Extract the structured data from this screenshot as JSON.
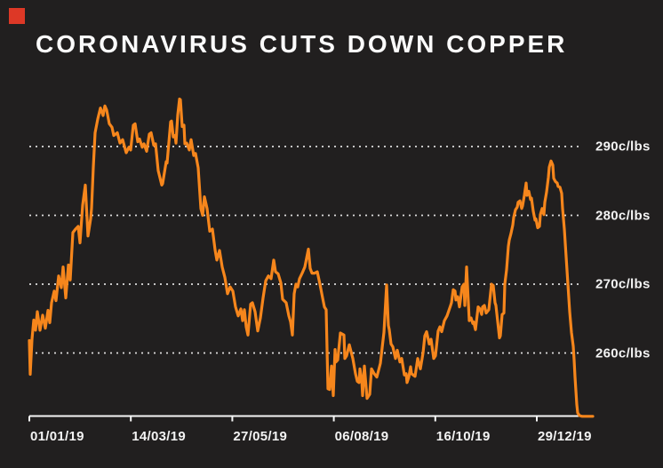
{
  "page": {
    "background_color": "#211f1f",
    "accent_color": "#f6861c",
    "logo_color": "#dd3826",
    "text_color": "#fbfbfb"
  },
  "title": "CORONAVIRUS CUTS DOWN COPPER",
  "chart_data": {
    "type": "line",
    "title": "CORONAVIRUS CUTS DOWN COPPER",
    "unit": "c/lbs",
    "grid": "dotted horizontal",
    "legend": "none",
    "y_axis": {
      "side": "right",
      "ticks": [
        {
          "value": 290,
          "label": "290c/lbs"
        },
        {
          "value": 280,
          "label": "280c/lbs"
        },
        {
          "value": 270,
          "label": "270c/lbs"
        },
        {
          "value": 260,
          "label": "260c/lbs"
        }
      ],
      "visible_range": [
        250.5,
        298
      ]
    },
    "x_axis": {
      "tick_labels": [
        "01/01/19",
        "14/03/19",
        "27/05/19",
        "06/08/19",
        "16/10/19",
        "29/12/19"
      ]
    },
    "series": [
      {
        "name": "Copper price (c/lbs)",
        "color": "#f6861c",
        "points": [
          [
            33,
            261.8
          ],
          [
            34,
            256.9
          ],
          [
            36,
            262.0
          ],
          [
            38,
            264.8
          ],
          [
            40,
            263.3
          ],
          [
            42,
            266.0
          ],
          [
            45,
            263.3
          ],
          [
            48,
            265.5
          ],
          [
            51,
            263.6
          ],
          [
            54,
            266.2
          ],
          [
            56,
            264.4
          ],
          [
            58,
            267.3
          ],
          [
            61,
            269.0
          ],
          [
            63,
            267.6
          ],
          [
            66,
            271.2
          ],
          [
            69,
            269.5
          ],
          [
            71,
            272.5
          ],
          [
            74,
            268.0
          ],
          [
            77,
            272.8
          ],
          [
            79,
            270.6
          ],
          [
            82,
            277.5
          ],
          [
            85,
            278.0
          ],
          [
            88,
            278.4
          ],
          [
            90,
            276.0
          ],
          [
            93,
            281.5
          ],
          [
            96,
            284.4
          ],
          [
            99,
            277.0
          ],
          [
            102,
            279.5
          ],
          [
            103,
            281.0
          ],
          [
            105,
            287.0
          ],
          [
            107,
            292.0
          ],
          [
            110,
            294.0
          ],
          [
            113,
            295.6
          ],
          [
            116,
            294.5
          ],
          [
            118,
            295.9
          ],
          [
            120,
            295.3
          ],
          [
            123,
            293.3
          ],
          [
            126,
            292.8
          ],
          [
            128,
            291.6
          ],
          [
            132,
            292.0
          ],
          [
            135,
            290.5
          ],
          [
            138,
            291.0
          ],
          [
            142,
            289.1
          ],
          [
            145,
            289.9
          ],
          [
            147,
            289.5
          ],
          [
            150,
            293.1
          ],
          [
            152,
            293.3
          ],
          [
            155,
            290.7
          ],
          [
            157,
            291.1
          ],
          [
            160,
            289.9
          ],
          [
            162,
            290.4
          ],
          [
            165,
            289.3
          ],
          [
            168,
            291.8
          ],
          [
            170,
            292.0
          ],
          [
            173,
            290.2
          ],
          [
            175,
            290.4
          ],
          [
            178,
            286.5
          ],
          [
            182,
            284.4
          ],
          [
            183,
            284.6
          ],
          [
            187,
            287.8
          ],
          [
            188,
            287.6
          ],
          [
            192,
            293.6
          ],
          [
            193,
            293.7
          ],
          [
            195,
            291.4
          ],
          [
            197,
            291.6
          ],
          [
            198,
            290.5
          ],
          [
            200,
            294.6
          ],
          [
            202,
            296.9
          ],
          [
            203,
            296.8
          ],
          [
            205,
            292.9
          ],
          [
            207,
            293.1
          ],
          [
            208,
            290.4
          ],
          [
            210,
            290.5
          ],
          [
            213,
            289.5
          ],
          [
            215,
            291.0
          ],
          [
            218,
            288.7
          ],
          [
            220,
            289.0
          ],
          [
            223,
            286.9
          ],
          [
            226,
            281.0
          ],
          [
            228,
            280.0
          ],
          [
            230,
            282.7
          ],
          [
            233,
            281.0
          ],
          [
            236,
            277.7
          ],
          [
            239,
            278.0
          ],
          [
            242,
            275.0
          ],
          [
            244,
            273.5
          ],
          [
            247,
            274.9
          ],
          [
            250,
            272.5
          ],
          [
            253,
            271.0
          ],
          [
            256,
            268.6
          ],
          [
            259,
            269.6
          ],
          [
            262,
            269.0
          ],
          [
            265,
            266.7
          ],
          [
            268,
            265.4
          ],
          [
            271,
            266.4
          ],
          [
            273,
            264.7
          ],
          [
            275,
            266.3
          ],
          [
            277,
            263.8
          ],
          [
            279,
            262.6
          ],
          [
            282,
            267.1
          ],
          [
            284,
            267.3
          ],
          [
            287,
            266.0
          ],
          [
            290,
            263.2
          ],
          [
            293,
            265.1
          ],
          [
            296,
            268.0
          ],
          [
            299,
            270.5
          ],
          [
            302,
            271.2
          ],
          [
            305,
            270.8
          ],
          [
            308,
            273.5
          ],
          [
            310,
            271.8
          ],
          [
            313,
            271.5
          ],
          [
            316,
            270.2
          ],
          [
            318,
            267.8
          ],
          [
            322,
            267.3
          ],
          [
            325,
            265.4
          ],
          [
            327,
            264.5
          ],
          [
            329,
            262.6
          ],
          [
            331,
            268.6
          ],
          [
            333,
            270.0
          ],
          [
            335,
            269.6
          ],
          [
            337,
            270.8
          ],
          [
            340,
            271.6
          ],
          [
            343,
            272.5
          ],
          [
            347,
            275.1
          ],
          [
            349,
            272.3
          ],
          [
            351,
            271.6
          ],
          [
            354,
            271.6
          ],
          [
            357,
            271.8
          ],
          [
            360,
            270.0
          ],
          [
            363,
            268.0
          ],
          [
            365,
            266.7
          ],
          [
            367,
            266.3
          ],
          [
            369,
            254.8
          ],
          [
            371,
            254.7
          ],
          [
            373,
            258.1
          ],
          [
            375,
            253.8
          ],
          [
            377,
            260.5
          ],
          [
            378,
            258.7
          ],
          [
            380,
            259.0
          ],
          [
            383,
            262.9
          ],
          [
            387,
            262.6
          ],
          [
            388,
            259.2
          ],
          [
            390,
            259.6
          ],
          [
            393,
            261.2
          ],
          [
            397,
            259.2
          ],
          [
            400,
            257.0
          ],
          [
            402,
            255.9
          ],
          [
            404,
            255.7
          ],
          [
            405,
            257.7
          ],
          [
            407,
            256.1
          ],
          [
            408,
            253.8
          ],
          [
            410,
            258.1
          ],
          [
            413,
            253.4
          ],
          [
            416,
            254.0
          ],
          [
            418,
            257.7
          ],
          [
            421,
            257.0
          ],
          [
            424,
            256.5
          ],
          [
            428,
            258.5
          ],
          [
            432,
            263.0
          ],
          [
            435,
            269.9
          ],
          [
            437,
            264.0
          ],
          [
            438,
            263.4
          ],
          [
            440,
            261.3
          ],
          [
            442,
            260.9
          ],
          [
            445,
            259.2
          ],
          [
            447,
            260.4
          ],
          [
            450,
            258.7
          ],
          [
            452,
            259.2
          ],
          [
            455,
            256.8
          ],
          [
            457,
            257.0
          ],
          [
            458,
            255.7
          ],
          [
            460,
            256.5
          ],
          [
            462,
            258.0
          ],
          [
            463,
            257.0
          ],
          [
            467,
            256.6
          ],
          [
            470,
            259.2
          ],
          [
            473,
            257.7
          ],
          [
            476,
            260.0
          ],
          [
            478,
            262.5
          ],
          [
            480,
            263.1
          ],
          [
            483,
            261.3
          ],
          [
            485,
            262.0
          ],
          [
            488,
            259.2
          ],
          [
            490,
            259.6
          ],
          [
            493,
            263.2
          ],
          [
            495,
            263.8
          ],
          [
            497,
            263.1
          ],
          [
            500,
            264.7
          ],
          [
            503,
            265.4
          ],
          [
            507,
            266.9
          ],
          [
            508,
            267.3
          ],
          [
            510,
            269.2
          ],
          [
            512,
            269.0
          ],
          [
            513,
            267.7
          ],
          [
            515,
            268.2
          ],
          [
            517,
            266.7
          ],
          [
            520,
            269.6
          ],
          [
            522,
            270.0
          ],
          [
            523,
            266.9
          ],
          [
            525,
            272.5
          ],
          [
            528,
            264.7
          ],
          [
            530,
            265.1
          ],
          [
            532,
            264.3
          ],
          [
            533,
            264.5
          ],
          [
            535,
            263.4
          ],
          [
            538,
            266.7
          ],
          [
            540,
            266.4
          ],
          [
            542,
            265.6
          ],
          [
            543,
            266.7
          ],
          [
            545,
            266.9
          ],
          [
            547,
            265.8
          ],
          [
            550,
            266.3
          ],
          [
            553,
            270.0
          ],
          [
            555,
            269.8
          ],
          [
            557,
            267.3
          ],
          [
            558,
            266.9
          ],
          [
            562,
            262.2
          ],
          [
            563,
            262.5
          ],
          [
            565,
            265.6
          ],
          [
            567,
            265.8
          ],
          [
            568,
            270.0
          ],
          [
            570,
            272.1
          ],
          [
            572,
            275.5
          ],
          [
            573,
            276.4
          ],
          [
            575,
            277.4
          ],
          [
            577,
            278.6
          ],
          [
            578,
            279.7
          ],
          [
            580,
            280.8
          ],
          [
            582,
            281.2
          ],
          [
            583,
            281.9
          ],
          [
            585,
            282.1
          ],
          [
            587,
            281.0
          ],
          [
            588,
            281.4
          ],
          [
            590,
            282.9
          ],
          [
            592,
            284.7
          ],
          [
            593,
            282.9
          ],
          [
            595,
            283.5
          ],
          [
            597,
            282.3
          ],
          [
            598,
            282.5
          ],
          [
            600,
            280.6
          ],
          [
            602,
            279.3
          ],
          [
            603,
            279.5
          ],
          [
            605,
            278.2
          ],
          [
            607,
            278.4
          ],
          [
            608,
            280.1
          ],
          [
            610,
            281.0
          ],
          [
            612,
            280.1
          ],
          [
            613,
            281.9
          ],
          [
            615,
            283.4
          ],
          [
            617,
            285.5
          ],
          [
            618,
            287.0
          ],
          [
            620,
            287.9
          ],
          [
            622,
            287.3
          ],
          [
            623,
            285.4
          ],
          [
            625,
            284.9
          ],
          [
            627,
            284.7
          ],
          [
            628,
            284.2
          ],
          [
            630,
            284.1
          ],
          [
            632,
            283.2
          ],
          [
            633,
            281.0
          ],
          [
            635,
            278.0
          ],
          [
            637,
            274.0
          ],
          [
            639,
            270.0
          ],
          [
            641,
            266.0
          ],
          [
            643,
            263.0
          ],
          [
            645,
            261.0
          ],
          [
            646,
            259.0
          ],
          [
            647,
            256.5
          ],
          [
            648,
            254.5
          ],
          [
            649,
            252.5
          ],
          [
            650,
            251.3
          ],
          [
            652,
            250.9
          ],
          [
            655,
            250.8
          ],
          [
            667,
            250.8
          ]
        ]
      }
    ]
  }
}
